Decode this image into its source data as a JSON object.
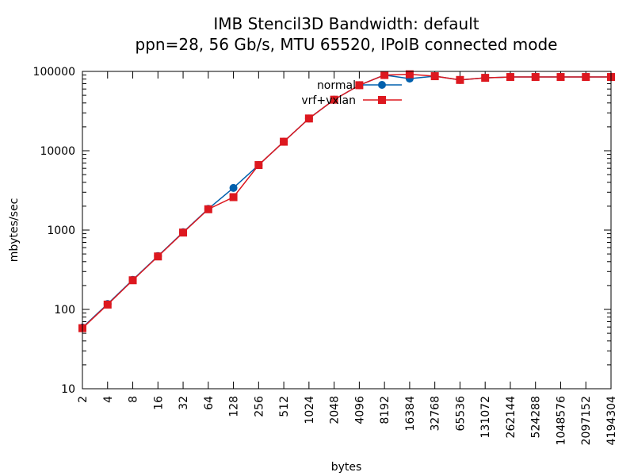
{
  "chart_data": {
    "type": "line",
    "title": "IMB Stencil3D Bandwidth: default",
    "subtitle": "ppn=28, 56 Gb/s, MTU 65520, IPoIB connected mode",
    "xlabel": "bytes",
    "ylabel": "mbytes/sec",
    "xscale": "log2-categorical",
    "yscale": "log10",
    "ylim": [
      10,
      100000
    ],
    "y_ticks": [
      "10",
      "100",
      "1000",
      "10000",
      "100000"
    ],
    "x_ticks": [
      "2",
      "4",
      "8",
      "16",
      "32",
      "64",
      "128",
      "256",
      "512",
      "1024",
      "2048",
      "4096",
      "8192",
      "16384",
      "32768",
      "65536",
      "131072",
      "262144",
      "524288",
      "1048576",
      "2097152",
      "4194304"
    ],
    "x": [
      2,
      4,
      8,
      16,
      32,
      64,
      128,
      256,
      512,
      1024,
      2048,
      4096,
      8192,
      16384,
      32768,
      65536,
      131072,
      262144,
      524288,
      1048576,
      2097152,
      4194304
    ],
    "legend_position": "top-center",
    "series": [
      {
        "name": "normal",
        "color": "#0060ad",
        "marker": "circle",
        "values": [
          59,
          117,
          236,
          470,
          940,
          1850,
          3400,
          6600,
          13000,
          25500,
          44000,
          67000,
          90000,
          81000,
          87000,
          78000,
          83000,
          85000,
          85000,
          85000,
          85000,
          85000
        ]
      },
      {
        "name": "vrf+vxlan",
        "color": "#dd181f",
        "marker": "square",
        "values": [
          58,
          115,
          233,
          465,
          930,
          1830,
          2600,
          6600,
          13000,
          25500,
          44000,
          67000,
          90000,
          92000,
          87000,
          78000,
          83000,
          85000,
          85000,
          85000,
          85000,
          85000
        ]
      }
    ]
  }
}
